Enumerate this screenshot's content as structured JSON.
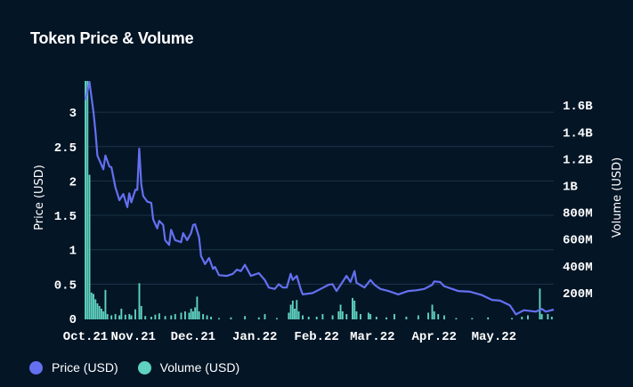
{
  "chart_data": {
    "type": "line+bar",
    "title": "Token Price & Volume",
    "xlabel": "",
    "ylabel": "Price (USD)",
    "y2label": "Volume (USD)",
    "xlim": [
      "2021-10-08",
      "2022-05-31"
    ],
    "ylim": [
      0,
      3.45
    ],
    "y2lim": [
      0,
      1700000000
    ],
    "grid": true,
    "legend_position": "bottom-left",
    "x_ticks": [
      {
        "date": "2021-10-08",
        "label": "Oct.21"
      },
      {
        "date": "2021-11-01",
        "label": "Nov.21"
      },
      {
        "date": "2021-12-01",
        "label": "Dec.21"
      },
      {
        "date": "2022-01-01",
        "label": "Jan.22"
      },
      {
        "date": "2022-02-01",
        "label": "Feb.22"
      },
      {
        "date": "2022-03-01",
        "label": "Mar.22"
      },
      {
        "date": "2022-04-01",
        "label": "Apr.22"
      },
      {
        "date": "2022-05-01",
        "label": "May.22"
      }
    ],
    "y_ticks": [
      {
        "v": 0,
        "label": "0"
      },
      {
        "v": 0.5,
        "label": "0.5"
      },
      {
        "v": 1,
        "label": "1"
      },
      {
        "v": 1.5,
        "label": "1.5"
      },
      {
        "v": 2,
        "label": "2"
      },
      {
        "v": 2.5,
        "label": "2.5"
      },
      {
        "v": 3,
        "label": "3"
      }
    ],
    "y2_ticks": [
      {
        "v": 200000000,
        "label": "200M"
      },
      {
        "v": 400000000,
        "label": "400M"
      },
      {
        "v": 600000000,
        "label": "600M"
      },
      {
        "v": 800000000,
        "label": "800M"
      },
      {
        "v": 1000000000,
        "label": "1B"
      },
      {
        "v": 1200000000,
        "label": "1.2B"
      },
      {
        "v": 1400000000,
        "label": "1.4B"
      },
      {
        "v": 1600000000,
        "label": "1.6B"
      }
    ],
    "series": [
      {
        "name": "Price (USD)",
        "type": "line",
        "axis": "left",
        "color": "#6470f0",
        "points": [
          [
            "2021-10-08",
            3.18
          ],
          [
            "2021-10-10",
            3.44
          ],
          [
            "2021-10-12",
            3.0
          ],
          [
            "2021-10-13",
            2.72
          ],
          [
            "2021-10-14",
            2.37
          ],
          [
            "2021-10-17",
            2.17
          ],
          [
            "2021-10-18",
            2.37
          ],
          [
            "2021-10-20",
            2.21
          ],
          [
            "2021-10-21",
            2.2
          ],
          [
            "2021-10-23",
            1.91
          ],
          [
            "2021-10-25",
            1.72
          ],
          [
            "2021-10-27",
            1.81
          ],
          [
            "2021-10-29",
            1.62
          ],
          [
            "2021-10-30",
            1.82
          ],
          [
            "2021-10-31",
            1.69
          ],
          [
            "2021-11-02",
            1.87
          ],
          [
            "2021-11-03",
            1.87
          ],
          [
            "2021-11-04",
            2.47
          ],
          [
            "2021-11-05",
            1.95
          ],
          [
            "2021-11-06",
            1.78
          ],
          [
            "2021-11-08",
            1.7
          ],
          [
            "2021-11-10",
            1.68
          ],
          [
            "2021-11-11",
            1.44
          ],
          [
            "2021-11-13",
            1.31
          ],
          [
            "2021-11-14",
            1.42
          ],
          [
            "2021-11-16",
            1.36
          ],
          [
            "2021-11-17",
            1.14
          ],
          [
            "2021-11-19",
            1.07
          ],
          [
            "2021-11-20",
            1.29
          ],
          [
            "2021-11-22",
            1.14
          ],
          [
            "2021-11-25",
            1.11
          ],
          [
            "2021-11-26",
            1.24
          ],
          [
            "2021-11-28",
            1.14
          ],
          [
            "2021-11-30",
            1.24
          ],
          [
            "2021-12-01",
            1.36
          ],
          [
            "2021-12-02",
            1.37
          ],
          [
            "2021-12-04",
            1.18
          ],
          [
            "2021-12-05",
            0.91
          ],
          [
            "2021-12-07",
            0.79
          ],
          [
            "2021-12-09",
            0.88
          ],
          [
            "2021-12-11",
            0.72
          ],
          [
            "2021-12-12",
            0.75
          ],
          [
            "2021-12-14",
            0.63
          ],
          [
            "2021-12-18",
            0.62
          ],
          [
            "2021-12-21",
            0.65
          ],
          [
            "2021-12-23",
            0.71
          ],
          [
            "2021-12-25",
            0.69
          ],
          [
            "2021-12-27",
            0.78
          ],
          [
            "2021-12-30",
            0.62
          ],
          [
            "2022-01-03",
            0.66
          ],
          [
            "2022-01-06",
            0.56
          ],
          [
            "2022-01-08",
            0.45
          ],
          [
            "2022-01-11",
            0.43
          ],
          [
            "2022-01-13",
            0.5
          ],
          [
            "2022-01-15",
            0.45
          ],
          [
            "2022-01-17",
            0.45
          ],
          [
            "2022-01-19",
            0.65
          ],
          [
            "2022-01-20",
            0.56
          ],
          [
            "2022-01-22",
            0.62
          ],
          [
            "2022-01-24",
            0.43
          ],
          [
            "2022-01-25",
            0.35
          ],
          [
            "2022-01-30",
            0.37
          ],
          [
            "2022-02-03",
            0.43
          ],
          [
            "2022-02-07",
            0.49
          ],
          [
            "2022-02-09",
            0.5
          ],
          [
            "2022-02-11",
            0.4
          ],
          [
            "2022-02-14",
            0.53
          ],
          [
            "2022-02-16",
            0.62
          ],
          [
            "2022-02-18",
            0.53
          ],
          [
            "2022-02-20",
            0.69
          ],
          [
            "2022-02-21",
            0.52
          ],
          [
            "2022-02-25",
            0.45
          ],
          [
            "2022-02-28",
            0.56
          ],
          [
            "2022-03-02",
            0.49
          ],
          [
            "2022-03-05",
            0.43
          ],
          [
            "2022-03-09",
            0.4
          ],
          [
            "2022-03-14",
            0.35
          ],
          [
            "2022-03-19",
            0.4
          ],
          [
            "2022-03-23",
            0.41
          ],
          [
            "2022-03-27",
            0.43
          ],
          [
            "2022-03-31",
            0.49
          ],
          [
            "2022-04-01",
            0.54
          ],
          [
            "2022-04-04",
            0.53
          ],
          [
            "2022-04-06",
            0.47
          ],
          [
            "2022-04-09",
            0.44
          ],
          [
            "2022-04-13",
            0.4
          ],
          [
            "2022-04-19",
            0.39
          ],
          [
            "2022-04-25",
            0.34
          ],
          [
            "2022-04-30",
            0.27
          ],
          [
            "2022-05-04",
            0.26
          ],
          [
            "2022-05-09",
            0.19
          ],
          [
            "2022-05-12",
            0.06
          ],
          [
            "2022-05-16",
            0.12
          ],
          [
            "2022-05-22",
            0.1
          ],
          [
            "2022-05-25",
            0.14
          ],
          [
            "2022-05-27",
            0.1
          ],
          [
            "2022-05-31",
            0.13
          ]
        ]
      },
      {
        "name": "Volume (USD)",
        "type": "bar",
        "axis": "right",
        "color": "#5fd3bf",
        "points": [
          [
            "2021-10-08",
            1800000000
          ],
          [
            "2021-10-09",
            1800000000
          ],
          [
            "2021-10-10",
            1080000000
          ],
          [
            "2021-10-11",
            200000000
          ],
          [
            "2021-10-12",
            190000000
          ],
          [
            "2021-10-13",
            150000000
          ],
          [
            "2021-10-14",
            120000000
          ],
          [
            "2021-10-15",
            100000000
          ],
          [
            "2021-10-16",
            80000000
          ],
          [
            "2021-10-17",
            60000000
          ],
          [
            "2021-10-18",
            220000000
          ],
          [
            "2021-10-19",
            40000000
          ],
          [
            "2021-10-21",
            30000000
          ],
          [
            "2021-10-23",
            40000000
          ],
          [
            "2021-10-25",
            30000000
          ],
          [
            "2021-10-26",
            80000000
          ],
          [
            "2021-10-28",
            35000000
          ],
          [
            "2021-10-30",
            40000000
          ],
          [
            "2021-10-31",
            30000000
          ],
          [
            "2021-11-02",
            75000000
          ],
          [
            "2021-11-04",
            270000000
          ],
          [
            "2021-11-05",
            100000000
          ],
          [
            "2021-11-07",
            25000000
          ],
          [
            "2021-11-10",
            20000000
          ],
          [
            "2021-11-12",
            35000000
          ],
          [
            "2021-11-14",
            45000000
          ],
          [
            "2021-11-17",
            25000000
          ],
          [
            "2021-11-20",
            30000000
          ],
          [
            "2021-11-22",
            40000000
          ],
          [
            "2021-11-25",
            50000000
          ],
          [
            "2021-11-27",
            60000000
          ],
          [
            "2021-11-29",
            50000000
          ],
          [
            "2021-11-30",
            80000000
          ],
          [
            "2021-12-01",
            60000000
          ],
          [
            "2021-12-02",
            90000000
          ],
          [
            "2021-12-03",
            170000000
          ],
          [
            "2021-12-04",
            60000000
          ],
          [
            "2021-12-06",
            40000000
          ],
          [
            "2021-12-08",
            30000000
          ],
          [
            "2021-12-10",
            20000000
          ],
          [
            "2021-12-14",
            10000000
          ],
          [
            "2021-12-20",
            15000000
          ],
          [
            "2021-12-27",
            25000000
          ],
          [
            "2022-01-03",
            15000000
          ],
          [
            "2022-01-06",
            40000000
          ],
          [
            "2022-01-12",
            10000000
          ],
          [
            "2022-01-18",
            50000000
          ],
          [
            "2022-01-19",
            110000000
          ],
          [
            "2022-01-20",
            140000000
          ],
          [
            "2022-01-21",
            80000000
          ],
          [
            "2022-01-22",
            145000000
          ],
          [
            "2022-01-23",
            60000000
          ],
          [
            "2022-01-25",
            30000000
          ],
          [
            "2022-01-28",
            20000000
          ],
          [
            "2022-02-01",
            20000000
          ],
          [
            "2022-02-04",
            40000000
          ],
          [
            "2022-02-09",
            30000000
          ],
          [
            "2022-02-12",
            60000000
          ],
          [
            "2022-02-13",
            110000000
          ],
          [
            "2022-02-14",
            60000000
          ],
          [
            "2022-02-16",
            40000000
          ],
          [
            "2022-02-19",
            160000000
          ],
          [
            "2022-02-20",
            140000000
          ],
          [
            "2022-02-21",
            60000000
          ],
          [
            "2022-02-23",
            40000000
          ],
          [
            "2022-02-27",
            50000000
          ],
          [
            "2022-02-28",
            40000000
          ],
          [
            "2022-03-03",
            20000000
          ],
          [
            "2022-03-08",
            15000000
          ],
          [
            "2022-03-12",
            40000000
          ],
          [
            "2022-03-18",
            20000000
          ],
          [
            "2022-03-24",
            30000000
          ],
          [
            "2022-03-29",
            50000000
          ],
          [
            "2022-03-31",
            110000000
          ],
          [
            "2022-04-01",
            60000000
          ],
          [
            "2022-04-03",
            40000000
          ],
          [
            "2022-04-06",
            30000000
          ],
          [
            "2022-04-12",
            10000000
          ],
          [
            "2022-04-20",
            10000000
          ],
          [
            "2022-04-28",
            15000000
          ],
          [
            "2022-05-10",
            10000000
          ],
          [
            "2022-05-15",
            20000000
          ],
          [
            "2022-05-18",
            30000000
          ],
          [
            "2022-05-24",
            230000000
          ],
          [
            "2022-05-25",
            40000000
          ],
          [
            "2022-05-28",
            40000000
          ],
          [
            "2022-05-30",
            20000000
          ]
        ]
      }
    ]
  }
}
